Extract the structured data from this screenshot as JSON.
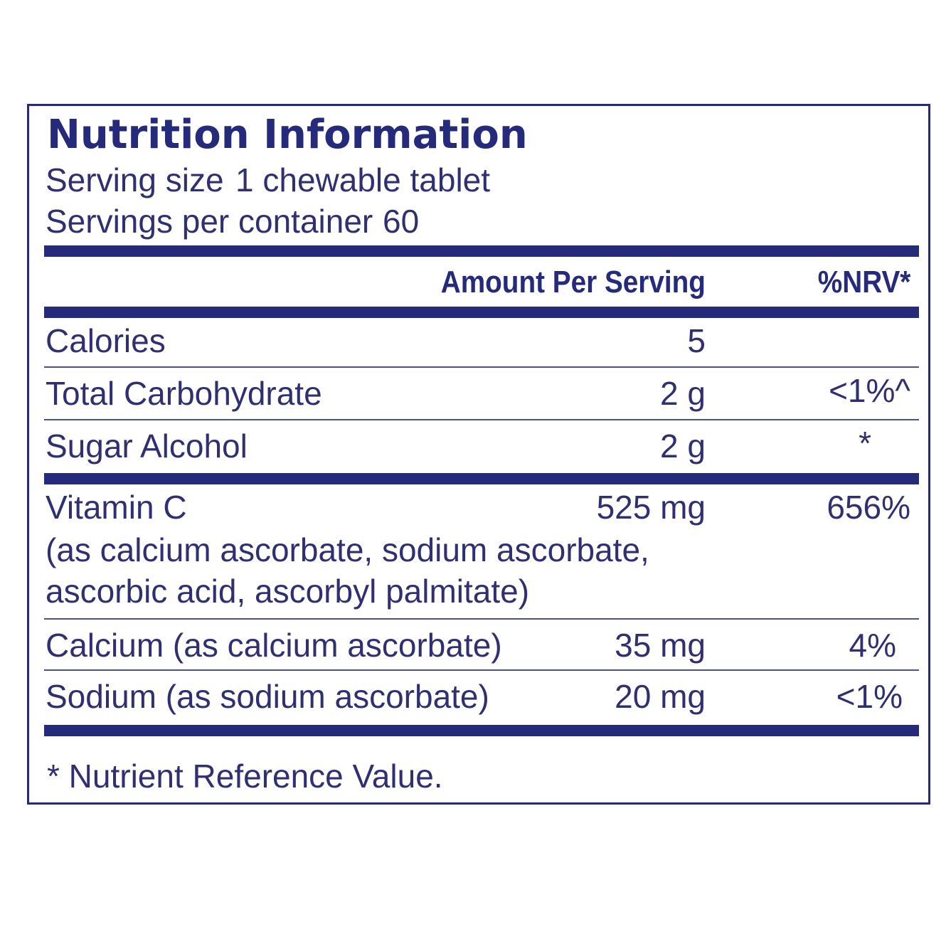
{
  "title": "Nutrition Information",
  "serving": {
    "size_label": "Serving size",
    "size_value": "1 chewable tablet",
    "per_container_label": "Servings per container",
    "per_container_value": "60"
  },
  "header": {
    "amount": "Amount Per Serving",
    "nrv": "%NRV*"
  },
  "rows": [
    {
      "name": "Calories",
      "amount": "5",
      "nrv": ""
    },
    {
      "name": "Total Carbohydrate",
      "amount": "2 g",
      "nrv": "<1%^"
    },
    {
      "name": "Sugar Alcohol",
      "amount": "2 g",
      "nrv": "*"
    },
    {
      "name": "Vitamin C",
      "amount": "525 mg",
      "nrv": "656%",
      "note_line1": "(as calcium ascorbate, sodium ascorbate,",
      "note_line2": "ascorbic acid, ascorbyl palmitate)"
    },
    {
      "name": "Calcium (as calcium ascorbate)",
      "amount": "35 mg",
      "nrv": "4%"
    },
    {
      "name": "Sodium (as sodium ascorbate)",
      "amount": "20 mg",
      "nrv": "<1%"
    }
  ],
  "footnote": "* Nutrient Reference Value.",
  "colors": {
    "brand_navy": "#252b7a",
    "text": "#303070"
  }
}
